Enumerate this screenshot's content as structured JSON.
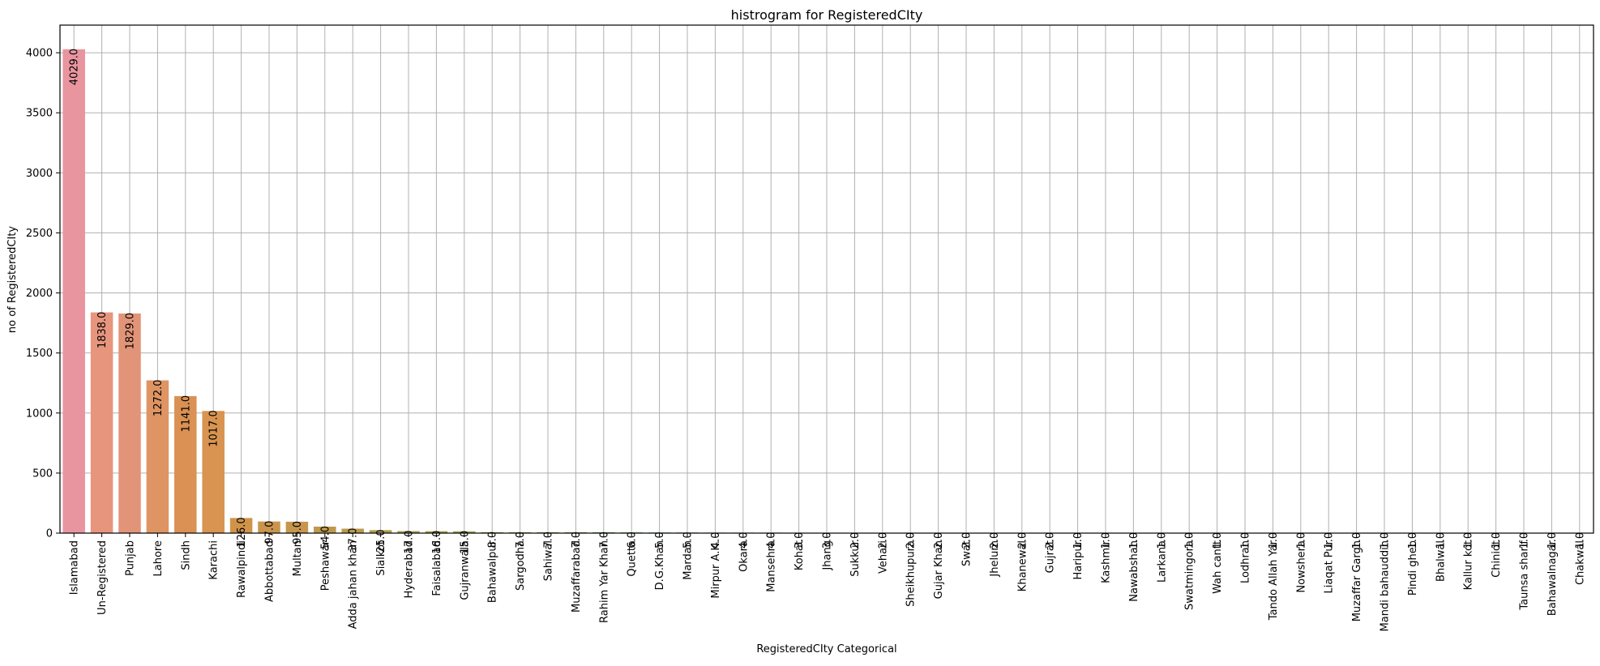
{
  "chart_data": {
    "type": "bar",
    "title": "histrogram for RegisteredCIty",
    "xlabel": "RegisteredCIty Categorical",
    "ylabel": "no of RegisteredCIty",
    "ylim": [
      0,
      4230
    ],
    "yticks": [
      0,
      500,
      1000,
      1500,
      2000,
      2500,
      3000,
      3500,
      4000
    ],
    "grid": true,
    "categories": [
      "Islamabad",
      "Un-Registered",
      "Punjab",
      "Lahore",
      "Sindh",
      "Karachi",
      "Rawalpindi",
      "Abbottabad",
      "Multan",
      "Peshawar",
      "Adda jahan khan",
      "Sialkot",
      "Hyderabad",
      "Faisalabad",
      "Gujranwala",
      "Bahawalpur",
      "Sargodha",
      "Sahiwal",
      "Muzaffarabad",
      "Rahim Yar Khan",
      "Quetta",
      "D.G.Khan",
      "Mardan",
      "Mirpur A.K.",
      "Okara",
      "Mansehra",
      "Kohat",
      "Jhang",
      "Sukkur",
      "Vehari",
      "Sheikhupura",
      "Gujar Khan",
      "Swat",
      "Jhelum",
      "Khanewal",
      "Gujrat",
      "Haripur",
      "Kashmir",
      "Nawabshah",
      "Larkana",
      "Swatmingora",
      "Wah cantt",
      "Lodhran",
      "Tando Allah Yar",
      "Nowshera",
      "Liaqat Pur",
      "Muzaffar Gargh",
      "Mandi bahauddin",
      "Pindi gheb",
      "Bhalwal",
      "Kallur kot",
      "Chiniot",
      "Taunsa sharif",
      "Bahawalnagar",
      "Chakwal"
    ],
    "values": [
      4029,
      1838,
      1829,
      1272,
      1141,
      1017,
      126,
      97,
      95,
      54,
      37,
      25,
      17,
      16,
      15,
      8,
      7,
      7,
      7,
      7,
      6,
      5,
      5,
      4,
      4,
      4,
      3,
      3,
      2,
      2,
      2,
      2,
      2,
      2,
      2,
      2,
      1,
      1,
      1,
      1,
      1,
      1,
      1,
      1,
      1,
      1,
      1,
      1,
      1,
      1,
      1,
      1,
      1,
      1,
      1
    ],
    "value_labels": [
      "4029.0",
      "1838.0",
      "1829.0",
      "1272.0",
      "1141.0",
      "1017.0",
      "126.0",
      "97.0",
      "95.0",
      "54.0",
      "37.0",
      "25.0",
      "17.0",
      "16.0",
      "15.0",
      "8.0",
      "7.0",
      "7.0",
      "7.0",
      "7.0",
      "6.0",
      "5.0",
      "5.0",
      "4.0",
      "4.0",
      "4.0",
      "3.0",
      "3.0",
      "2.0",
      "2.0",
      "2.0",
      "2.0",
      "2.0",
      "2.0",
      "2.0",
      "2.0",
      "1.0",
      "1.0",
      "1.0",
      "1.0",
      "1.0",
      "1.0",
      "1.0",
      "1.0",
      "1.0",
      "1.0",
      "1.0",
      "1.0",
      "1.0",
      "1.0",
      "1.0",
      "1.0",
      "1.0",
      "1.0",
      "1.0"
    ],
    "colors": [
      "#e8959f",
      "#e8957e",
      "#e29478",
      "#de9463",
      "#da9153",
      "#d89450",
      "#d0934a",
      "#c9954d",
      "#c6964d",
      "#be984b",
      "#b89a4b",
      "#b19d4a",
      "#a9a04a",
      "#a2a248",
      "#9ba548",
      "#93a748",
      "#8aa948",
      "#7faa48",
      "#72ac48",
      "#62ae4a",
      "#52b04d",
      "#4db058",
      "#4cb064",
      "#4cb16f",
      "#4cb07a",
      "#4cb084",
      "#4cb18d",
      "#4cb195",
      "#4db19c",
      "#4eb1a3",
      "#4fb1a9",
      "#50b0af",
      "#52b1b6",
      "#53b1bc",
      "#54b1c3",
      "#56b1c9",
      "#58b0d0",
      "#5cafd7",
      "#64addd",
      "#70abe2",
      "#7ea7e6",
      "#8ca4e8",
      "#9ba0ea",
      "#a99ceb",
      "#b597eb",
      "#c092e9",
      "#cb8de6",
      "#d589e2",
      "#de85dc",
      "#e682d5",
      "#e983cb",
      "#ea85c1",
      "#ea88b7",
      "#eb8bad",
      "#ea8ea4"
    ]
  }
}
